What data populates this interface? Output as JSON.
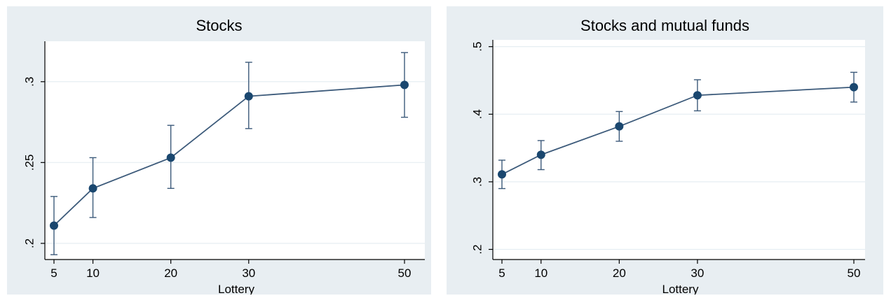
{
  "chart_data": [
    {
      "type": "line",
      "title": "Stocks",
      "xlabel": "Lottery",
      "ylabel": "",
      "x": [
        5,
        10,
        20,
        30,
        50
      ],
      "xticks": [
        "5",
        "10",
        "20",
        "30",
        "50"
      ],
      "xlim": [
        5,
        50
      ],
      "ylim": [
        0.19,
        0.325
      ],
      "yticks": [
        0.2,
        0.25,
        0.3
      ],
      "yticklabels": [
        ".2",
        ".25",
        ".3"
      ],
      "grid": true,
      "series": [
        {
          "values": [
            0.211,
            0.234,
            0.253,
            0.291,
            0.298
          ],
          "ci_lower": [
            0.193,
            0.216,
            0.234,
            0.271,
            0.278
          ],
          "ci_upper": [
            0.229,
            0.253,
            0.273,
            0.312,
            0.318
          ],
          "color": "#1a476f"
        }
      ]
    },
    {
      "type": "line",
      "title": "Stocks and mutual funds",
      "xlabel": "Lottery",
      "ylabel": "",
      "x": [
        5,
        10,
        20,
        30,
        50
      ],
      "xticks": [
        "5",
        "10",
        "20",
        "30",
        "50"
      ],
      "xlim": [
        5,
        50
      ],
      "ylim": [
        0.185,
        0.51
      ],
      "yticks": [
        0.2,
        0.3,
        0.4,
        0.5
      ],
      "yticklabels": [
        ".2",
        ".3",
        ".4",
        ".5"
      ],
      "grid": true,
      "series": [
        {
          "values": [
            0.311,
            0.34,
            0.382,
            0.428,
            0.44
          ],
          "ci_lower": [
            0.29,
            0.318,
            0.36,
            0.405,
            0.418
          ],
          "ci_upper": [
            0.332,
            0.361,
            0.404,
            0.451,
            0.462
          ],
          "color": "#1a476f"
        }
      ]
    }
  ]
}
